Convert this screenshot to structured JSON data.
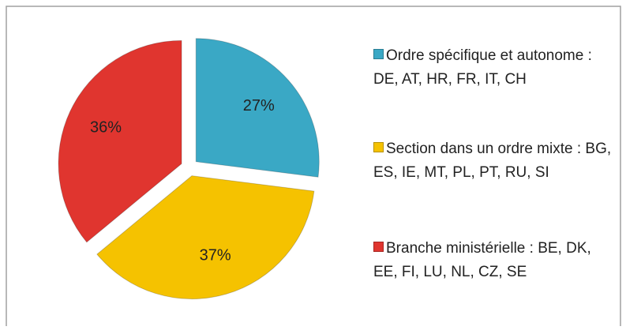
{
  "chart_data": {
    "type": "pie",
    "categories": [
      "Ordre spécifique et autonome : DE, AT, HR, FR, IT, CH",
      "Section dans un ordre mixte : BG, ES, IE, MT, PL, PT, RU, SI",
      "Branche ministérielle : BE, DK, EE, FI, LU, NL, CZ, SE"
    ],
    "values": [
      27,
      37,
      36
    ],
    "value_labels": [
      "27%",
      "37%",
      "36%"
    ],
    "colors": [
      "#3aa8c5",
      "#f5c200",
      "#e0352f"
    ],
    "legend": "right"
  }
}
